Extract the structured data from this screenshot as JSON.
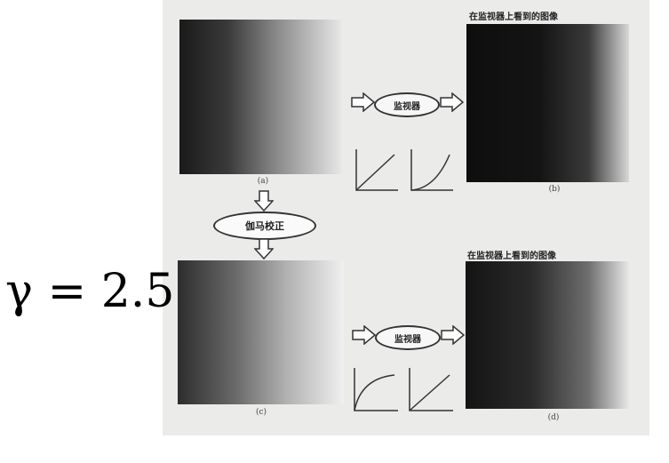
{
  "gamma_label": "γ = 2.5",
  "monitor_label": "监视器",
  "gamma_correction_label": "伽马校正",
  "monitor_view_title": "在监视器上看到的图像",
  "captions": {
    "a": "(a)",
    "b": "(b)",
    "c": "(c)",
    "d": "(d)"
  },
  "colors": {
    "background": "#ffffff",
    "scan_paper": "#ebebe9",
    "ink": "#222222"
  }
}
